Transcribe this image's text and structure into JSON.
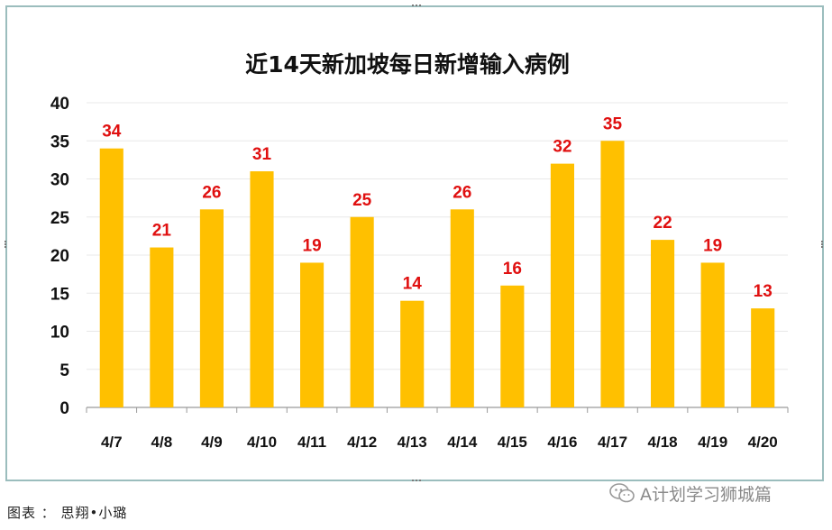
{
  "chart_data": {
    "type": "bar",
    "title": "近14天新加坡每日新增输入病例",
    "categories": [
      "4/7",
      "4/8",
      "4/9",
      "4/10",
      "4/11",
      "4/12",
      "4/13",
      "4/14",
      "4/15",
      "4/16",
      "4/17",
      "4/18",
      "4/19",
      "4/20"
    ],
    "values": [
      34,
      21,
      26,
      31,
      19,
      25,
      14,
      26,
      16,
      32,
      35,
      22,
      19,
      13
    ],
    "ylim": [
      0,
      40
    ],
    "yticks": [
      0,
      5,
      10,
      15,
      20,
      25,
      30,
      35,
      40
    ],
    "xlabel": "",
    "ylabel": "",
    "grid": true,
    "bar_color": "#ffc000",
    "label_color": "#e01010",
    "data_labels": true
  },
  "caption": "图表 ： 思翔•小璐",
  "watermark": {
    "text": "A计划学习狮城篇",
    "icon": "wechat-icon"
  }
}
